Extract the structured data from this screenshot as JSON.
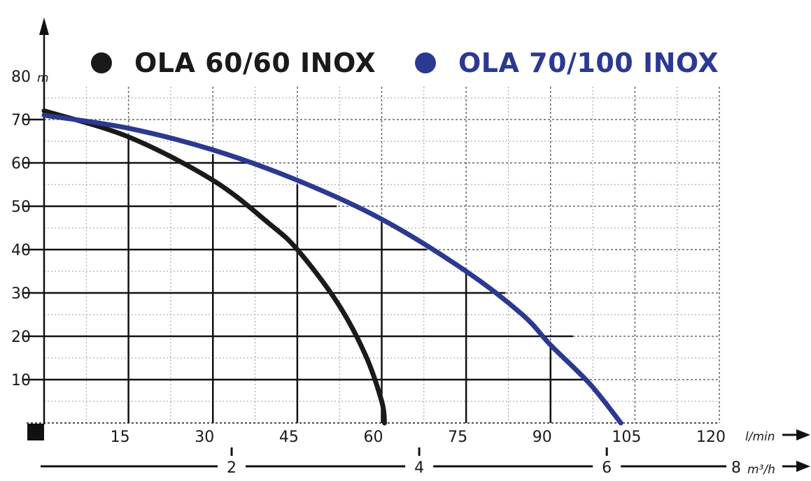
{
  "chart_data": {
    "type": "line",
    "ylabel": "m",
    "xlabel": "l/min",
    "x2label": "m³/h",
    "xlim": [
      0,
      120
    ],
    "ylim": [
      0,
      80
    ],
    "x_ticks": [
      15,
      30,
      45,
      60,
      75,
      90,
      105,
      120
    ],
    "y_ticks": [
      10,
      20,
      30,
      40,
      50,
      60,
      70,
      80
    ],
    "x2_ticks": [
      2,
      4,
      6,
      8
    ],
    "grid": true,
    "legend_position": "top",
    "series": [
      {
        "name": "OLA 60/60 INOX",
        "color": "#1a1a1a",
        "x": [
          0,
          15,
          30,
          40,
          45,
          52,
          57,
          60,
          60.5
        ],
        "y": [
          72,
          66,
          56,
          46,
          40,
          28,
          16,
          5,
          0
        ]
      },
      {
        "name": "OLA 70/100 INOX",
        "color": "#2b3990",
        "x": [
          0,
          15,
          30,
          45,
          60,
          75,
          85,
          90,
          97,
          102.5
        ],
        "y": [
          71,
          68,
          63,
          56,
          47,
          35,
          25,
          18,
          9,
          0
        ]
      }
    ]
  }
}
